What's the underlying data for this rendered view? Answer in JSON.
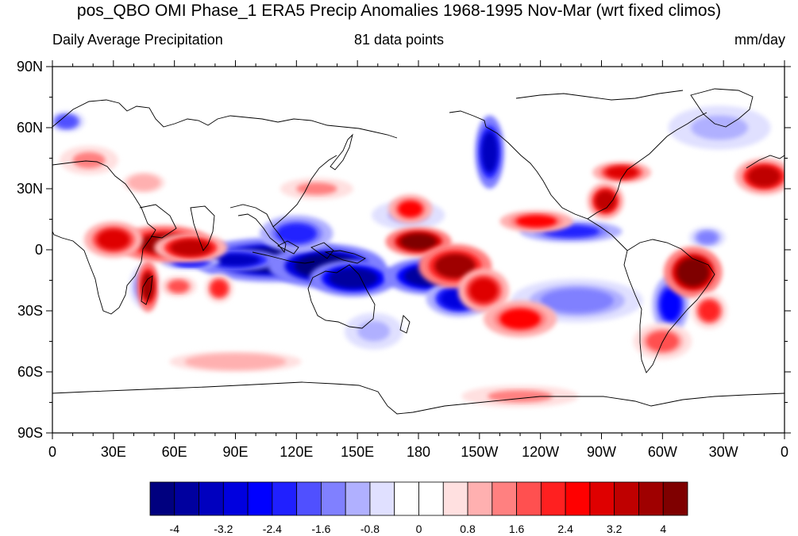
{
  "title": "pos_QBO OMI Phase_1 ERA5 Precip Anomalies 1968-1995 Nov-Mar (wrt fixed climos)",
  "subtitle_left": "Daily Average Precipitation",
  "subtitle_center": "81 data points",
  "subtitle_right": "mm/day",
  "lon_ticks": [
    {
      "lon": 0,
      "label": "0"
    },
    {
      "lon": 30,
      "label": "30E"
    },
    {
      "lon": 60,
      "label": "60E"
    },
    {
      "lon": 90,
      "label": "90E"
    },
    {
      "lon": 120,
      "label": "120E"
    },
    {
      "lon": 150,
      "label": "150E"
    },
    {
      "lon": 180,
      "label": "180"
    },
    {
      "lon": 210,
      "label": "150W"
    },
    {
      "lon": 240,
      "label": "120W"
    },
    {
      "lon": 270,
      "label": "90W"
    },
    {
      "lon": 300,
      "label": "60W"
    },
    {
      "lon": 330,
      "label": "30W"
    },
    {
      "lon": 360,
      "label": "0"
    }
  ],
  "lat_ticks": [
    {
      "lat": 90,
      "label": "90N"
    },
    {
      "lat": 60,
      "label": "60N"
    },
    {
      "lat": 30,
      "label": "30N"
    },
    {
      "lat": 0,
      "label": "0"
    },
    {
      "lat": -30,
      "label": "30S"
    },
    {
      "lat": -60,
      "label": "60S"
    },
    {
      "lat": -90,
      "label": "90S"
    }
  ],
  "colorbar": {
    "colors": [
      "#00007f",
      "#00009f",
      "#0000bf",
      "#0000df",
      "#0000ff",
      "#2020ff",
      "#5050ff",
      "#8080ff",
      "#b0b0ff",
      "#e0e0ff",
      "#ffffff",
      "#ffffff",
      "#ffe0e0",
      "#ffb0b0",
      "#ff8080",
      "#ff5050",
      "#ff2020",
      "#ff0000",
      "#df0000",
      "#bf0000",
      "#9f0000",
      "#7f0000"
    ],
    "labels": [
      {
        "boundary": 1,
        "text": "-4"
      },
      {
        "boundary": 3,
        "text": "-3.2"
      },
      {
        "boundary": 5,
        "text": "-2.4"
      },
      {
        "boundary": 7,
        "text": "-1.6"
      },
      {
        "boundary": 9,
        "text": "-0.8"
      },
      {
        "boundary": 11,
        "text": "0"
      },
      {
        "boundary": 13,
        "text": "0.8"
      },
      {
        "boundary": 15,
        "text": "1.6"
      },
      {
        "boundary": 17,
        "text": "2.4"
      },
      {
        "boundary": 19,
        "text": "3.2"
      },
      {
        "boundary": 21,
        "text": "4"
      }
    ]
  },
  "anomalies": [
    {
      "lon": 108,
      "lat": -5,
      "rlon": 22,
      "rlat": 6,
      "value": -4.4
    },
    {
      "lon": 135,
      "lat": -8,
      "rlon": 16,
      "rlat": 6,
      "value": -4.4
    },
    {
      "lon": 148,
      "lat": -14,
      "rlon": 12,
      "rlat": 5,
      "value": -4.0
    },
    {
      "lon": 90,
      "lat": -5,
      "rlon": 12,
      "rlat": 3,
      "value": -3.6
    },
    {
      "lon": 68,
      "lat": -6,
      "rlon": 8,
      "rlat": 2,
      "value": -2.8
    },
    {
      "lon": 185,
      "lat": -13,
      "rlon": 12,
      "rlat": 5,
      "value": -4.0
    },
    {
      "lon": 200,
      "lat": -24,
      "rlon": 9,
      "rlat": 5,
      "value": -3.2
    },
    {
      "lon": 215,
      "lat": 48,
      "rlon": 4,
      "rlat": 10,
      "value": -3.6
    },
    {
      "lon": 120,
      "lat": 8,
      "rlon": 10,
      "rlat": 5,
      "value": -2.4
    },
    {
      "lon": 255,
      "lat": 9,
      "rlon": 14,
      "rlat": 3,
      "value": -2.4
    },
    {
      "lon": 258,
      "lat": -25,
      "rlon": 18,
      "rlat": 6,
      "value": -1.6
    },
    {
      "lon": 304,
      "lat": -27,
      "rlon": 5,
      "rlat": 8,
      "value": -2.8
    },
    {
      "lon": 322,
      "lat": 6,
      "rlon": 5,
      "rlat": 3,
      "value": -1.6
    },
    {
      "lon": 7,
      "lat": 63,
      "rlon": 5,
      "rlat": 3,
      "value": -2.0
    },
    {
      "lon": 328,
      "lat": 60,
      "rlon": 14,
      "rlat": 6,
      "value": -1.2
    },
    {
      "lon": 45,
      "lat": -18,
      "rlon": 4,
      "rlat": 6,
      "value": -1.6
    },
    {
      "lon": 158,
      "lat": -40,
      "rlon": 8,
      "rlat": 5,
      "value": -1.2
    },
    {
      "lon": 175,
      "lat": 17,
      "rlon": 10,
      "rlat": 4,
      "value": -1.2
    },
    {
      "lon": 55,
      "lat": 3,
      "rlon": 13,
      "rlat": 5,
      "value": 3.6
    },
    {
      "lon": 68,
      "lat": 1,
      "rlon": 10,
      "rlat": 4,
      "value": 3.2
    },
    {
      "lon": 30,
      "lat": 5,
      "rlon": 8,
      "rlat": 5,
      "value": 2.8
    },
    {
      "lon": 47,
      "lat": -18,
      "rlon": 3,
      "rlat": 7,
      "value": 3.6
    },
    {
      "lon": 180,
      "lat": 4,
      "rlon": 9,
      "rlat": 4,
      "value": 4.4
    },
    {
      "lon": 176,
      "lat": 20,
      "rlon": 6,
      "rlat": 4,
      "value": 2.4
    },
    {
      "lon": 198,
      "lat": -8,
      "rlon": 10,
      "rlat": 6,
      "value": 3.6
    },
    {
      "lon": 212,
      "lat": -20,
      "rlon": 7,
      "rlat": 6,
      "value": 2.8
    },
    {
      "lon": 230,
      "lat": -34,
      "rlon": 10,
      "rlat": 5,
      "value": 2.4
    },
    {
      "lon": 238,
      "lat": 14,
      "rlon": 10,
      "rlat": 3,
      "value": 2.4
    },
    {
      "lon": 315,
      "lat": -11,
      "rlon": 8,
      "rlat": 7,
      "value": 4.4
    },
    {
      "lon": 272,
      "lat": 24,
      "rlon": 5,
      "rlat": 5,
      "value": 3.2
    },
    {
      "lon": 280,
      "lat": 38,
      "rlon": 8,
      "rlat": 3,
      "value": 2.8
    },
    {
      "lon": 350,
      "lat": 36,
      "rlon": 8,
      "rlat": 5,
      "value": 3.2
    },
    {
      "lon": 323,
      "lat": -30,
      "rlon": 5,
      "rlat": 5,
      "value": 2.0
    },
    {
      "lon": 82,
      "lat": -19,
      "rlon": 4,
      "rlat": 4,
      "value": 2.0
    },
    {
      "lon": 62,
      "lat": -18,
      "rlon": 5,
      "rlat": 3,
      "value": 1.6
    },
    {
      "lon": 230,
      "lat": -72,
      "rlon": 16,
      "rlat": 3,
      "value": 1.2
    },
    {
      "lon": 130,
      "lat": 30,
      "rlon": 10,
      "rlat": 3,
      "value": 1.2
    },
    {
      "lon": 18,
      "lat": 44,
      "rlon": 8,
      "rlat": 4,
      "value": 1.2
    },
    {
      "lon": 90,
      "lat": -55,
      "rlon": 25,
      "rlat": 4,
      "value": 0.8
    },
    {
      "lon": 300,
      "lat": -45,
      "rlon": 8,
      "rlat": 5,
      "value": 1.6
    },
    {
      "lon": 45,
      "lat": 33,
      "rlon": 8,
      "rlat": 4,
      "value": 0.8
    }
  ]
}
